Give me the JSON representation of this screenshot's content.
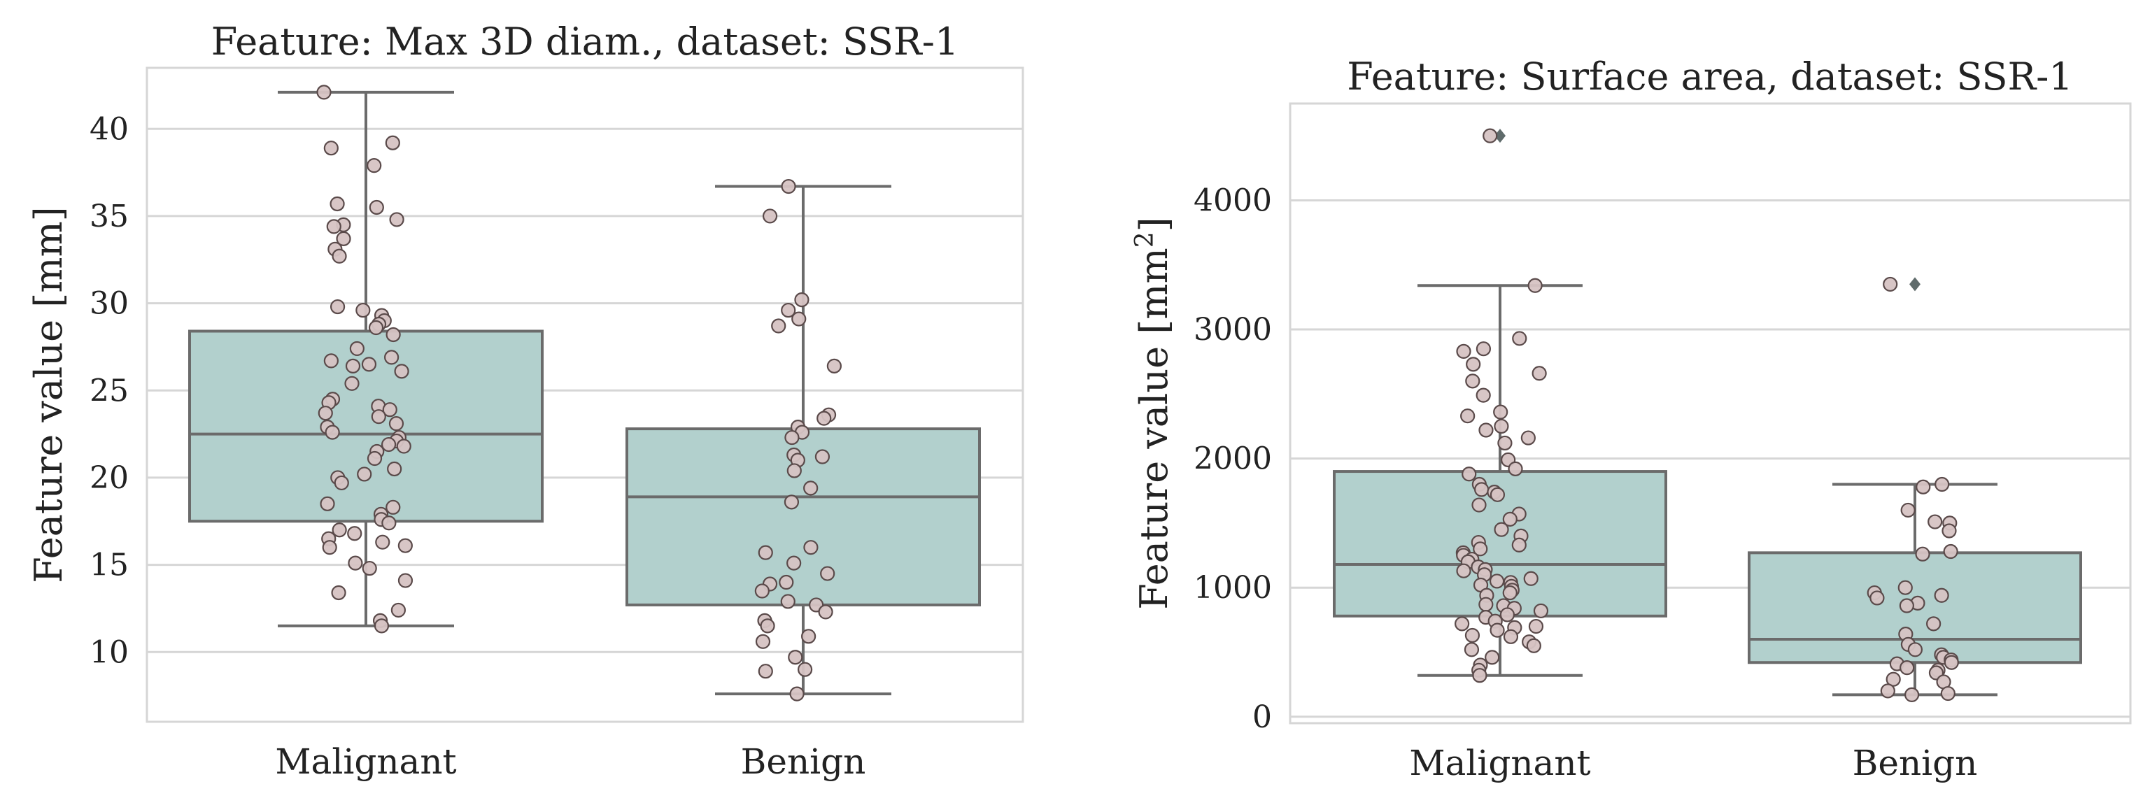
{
  "chart_data": [
    {
      "type": "boxplot",
      "title": "Feature: Max 3D diam., dataset: SSR-1",
      "ylabel": "Feature value [mm]",
      "xlabel": "",
      "ylim": [
        6.0,
        43.5
      ],
      "yticks": [
        10,
        15,
        20,
        25,
        30,
        35,
        40
      ],
      "grid": true,
      "categories": [
        "Malignant",
        "Benign"
      ],
      "boxes": [
        {
          "category": "Malignant",
          "whislo": 11.5,
          "q1": 17.5,
          "med": 22.5,
          "q3": 28.4,
          "whishi": 42.1,
          "fliers": []
        },
        {
          "category": "Benign",
          "whislo": 7.6,
          "q1": 12.7,
          "med": 18.9,
          "q3": 22.8,
          "whishi": 36.7,
          "fliers": []
        }
      ],
      "points": [
        {
          "category": "Malignant",
          "values": [
            42.1,
            39.2,
            38.9,
            37.9,
            35.7,
            35.5,
            34.8,
            34.5,
            34.4,
            33.7,
            33.1,
            32.7,
            29.8,
            29.6,
            29.3,
            29.0,
            28.8,
            28.6,
            28.2,
            27.4,
            26.9,
            26.7,
            26.5,
            26.4,
            26.1,
            25.4,
            24.5,
            24.3,
            24.1,
            23.9,
            23.7,
            23.5,
            23.1,
            22.9,
            22.6,
            22.3,
            22.1,
            21.9,
            21.8,
            21.5,
            21.1,
            20.5,
            20.2,
            20.0,
            19.7,
            18.5,
            18.3,
            17.9,
            17.6,
            17.4,
            17.0,
            16.8,
            16.5,
            16.3,
            16.1,
            16.0,
            15.1,
            14.8,
            14.1,
            13.4,
            12.4,
            11.8,
            11.5
          ]
        },
        {
          "category": "Benign",
          "values": [
            36.7,
            35.0,
            30.2,
            29.6,
            29.1,
            28.7,
            26.4,
            23.6,
            23.4,
            22.9,
            22.6,
            22.3,
            21.3,
            21.2,
            21.0,
            20.4,
            19.4,
            18.6,
            16.0,
            15.7,
            15.1,
            14.5,
            14.0,
            13.9,
            13.5,
            12.9,
            12.7,
            12.3,
            11.8,
            11.5,
            10.9,
            10.6,
            9.7,
            9.0,
            8.9,
            7.6
          ]
        }
      ]
    },
    {
      "type": "boxplot",
      "title": "Feature: Surface area, dataset: SSR-1",
      "ylabel": "Feature value [mm",
      "ylabel_sup": "2",
      "ylabel_end": "]",
      "xlabel": "",
      "ylim": [
        -50,
        4750
      ],
      "yticks": [
        0,
        1000,
        2000,
        3000,
        4000
      ],
      "grid": true,
      "categories": [
        "Malignant",
        "Benign"
      ],
      "boxes": [
        {
          "category": "Malignant",
          "whislo": 320,
          "q1": 780,
          "med": 1180,
          "q3": 1900,
          "whishi": 3340,
          "fliers": [
            4500
          ]
        },
        {
          "category": "Benign",
          "whislo": 170,
          "q1": 420,
          "med": 600,
          "q3": 1270,
          "whishi": 1800,
          "fliers": [
            3350
          ]
        }
      ],
      "points": [
        {
          "category": "Malignant",
          "values": [
            4500,
            3340,
            2930,
            2850,
            2830,
            2730,
            2660,
            2600,
            2490,
            2360,
            2330,
            2250,
            2220,
            2160,
            2120,
            1990,
            1920,
            1880,
            1800,
            1760,
            1740,
            1720,
            1640,
            1570,
            1530,
            1450,
            1400,
            1350,
            1330,
            1300,
            1270,
            1250,
            1220,
            1200,
            1160,
            1140,
            1130,
            1100,
            1070,
            1050,
            1040,
            1020,
            1010,
            980,
            960,
            940,
            870,
            860,
            840,
            820,
            790,
            770,
            740,
            720,
            700,
            690,
            670,
            630,
            620,
            580,
            550,
            520,
            460,
            400,
            360,
            320
          ]
        },
        {
          "category": "Benign",
          "values": [
            3350,
            1800,
            1780,
            1600,
            1510,
            1500,
            1440,
            1280,
            1260,
            1000,
            960,
            940,
            920,
            880,
            860,
            720,
            640,
            560,
            520,
            480,
            460,
            440,
            420,
            410,
            380,
            360,
            340,
            290,
            270,
            200,
            180,
            170
          ]
        }
      ]
    }
  ]
}
